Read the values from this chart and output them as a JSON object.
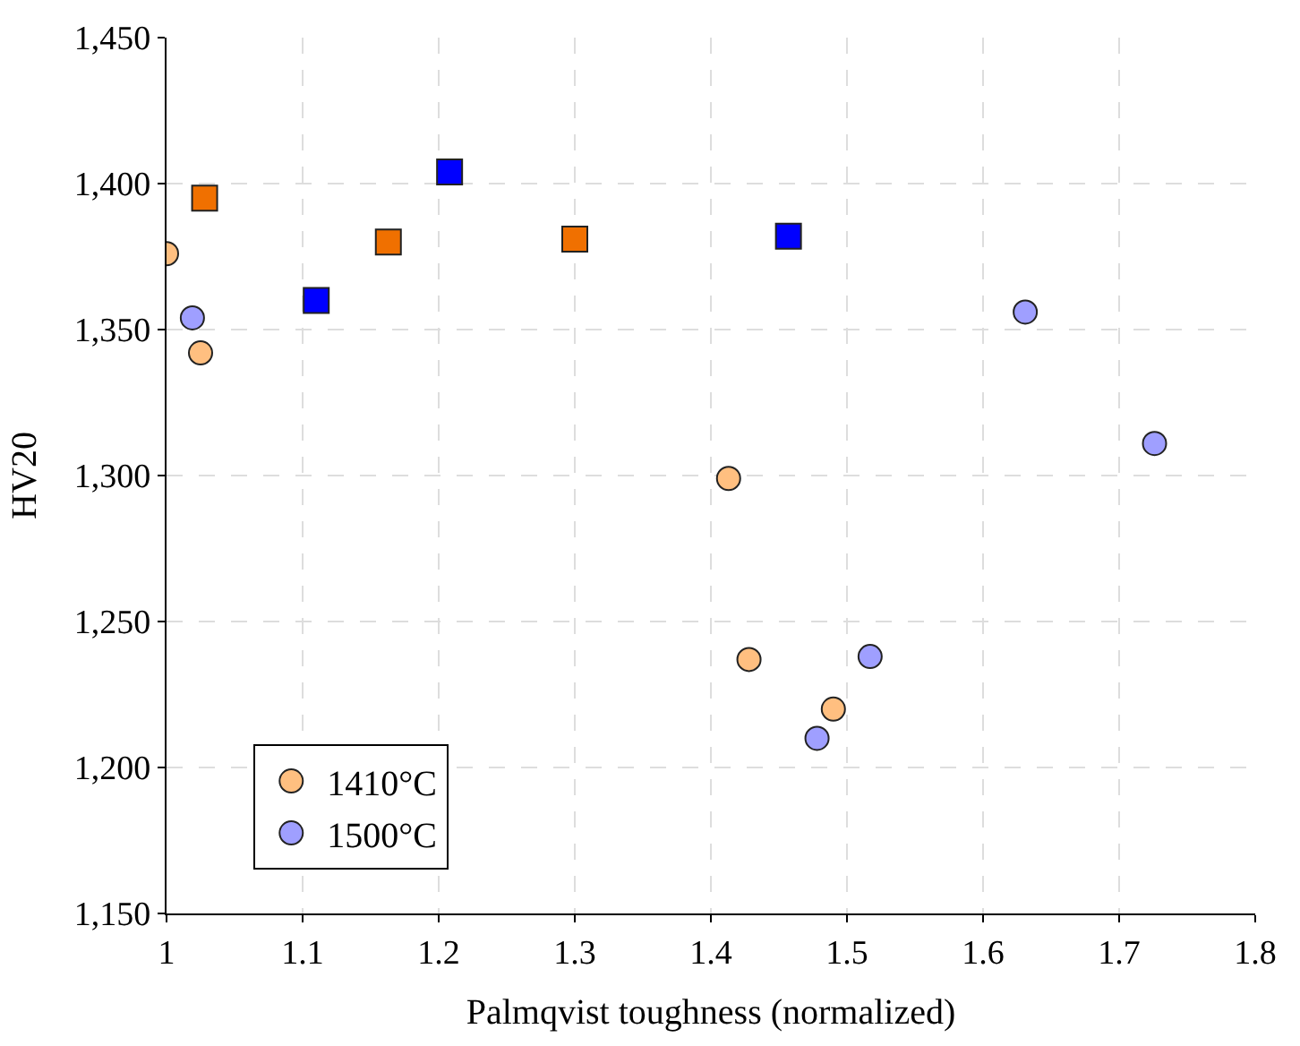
{
  "chart_data": {
    "type": "scatter",
    "xlabel": "Palmqvist toughness (normalized)",
    "ylabel": "HV20",
    "series": [
      {
        "name": "1410°C",
        "color": "#ffbf80",
        "marker": "circle",
        "x": [
          1.0,
          1.025,
          1.413,
          1.428,
          1.49
        ],
        "values": [
          1376,
          1342,
          1299,
          1237,
          1220
        ]
      },
      {
        "name": "1500°C",
        "color": "#9f9fff",
        "marker": "circle",
        "x": [
          1.019,
          1.478,
          1.517,
          1.631,
          1.726
        ],
        "values": [
          1354,
          1210,
          1238,
          1356,
          1311
        ]
      },
      {
        "color": "#f07000",
        "marker": "square",
        "x": [
          1.028,
          1.163,
          1.3
        ],
        "values": [
          1395,
          1380,
          1381
        ]
      },
      {
        "color": "#0000ff",
        "marker": "square",
        "x": [
          1.11,
          1.208,
          1.457
        ],
        "values": [
          1360,
          1404,
          1382
        ]
      }
    ],
    "xlim": [
      1,
      1.8
    ],
    "xticks": [
      1,
      1.1,
      1.2,
      1.3,
      1.4,
      1.5,
      1.6,
      1.7,
      1.8
    ],
    "ylim": [
      1150,
      1450
    ],
    "yticks": [
      {
        "value": 1150,
        "label": "1,150"
      },
      {
        "value": 1200,
        "label": "1,200"
      },
      {
        "value": 1250,
        "label": "1,250"
      },
      {
        "value": 1300,
        "label": "1,300"
      },
      {
        "value": 1350,
        "label": "1,350"
      },
      {
        "value": 1400,
        "label": "1,400"
      },
      {
        "value": 1450,
        "label": "1,450"
      }
    ],
    "grid": true,
    "legend": "bottom left"
  }
}
